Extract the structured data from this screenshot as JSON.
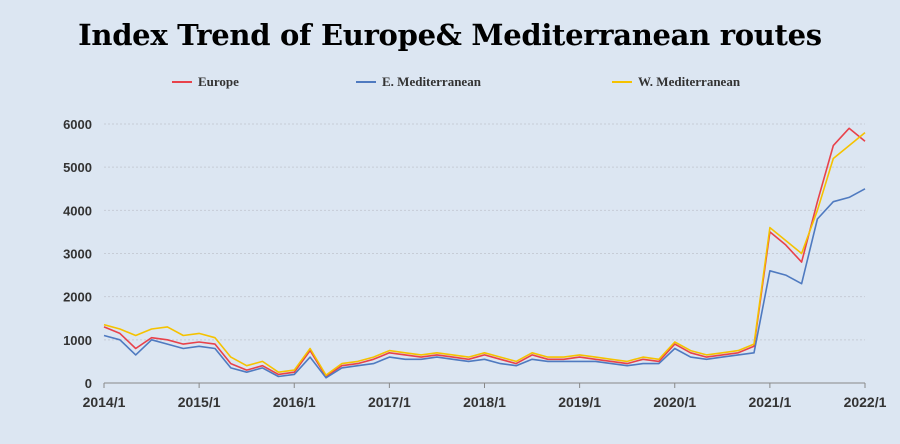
{
  "chart_data": {
    "type": "line",
    "title": "Index Trend of Europe& Mediterranean routes",
    "xlabel": "",
    "ylabel": "",
    "ylim": [
      0,
      6000
    ],
    "y_ticks": [
      "0",
      "1000",
      "2000",
      "3000",
      "4000",
      "5000",
      "6000"
    ],
    "x_ticks": [
      "2014/1",
      "2015/1",
      "2016/1",
      "2017/1",
      "2018/1",
      "2019/1",
      "2020/1",
      "2021/1",
      "2022/1"
    ],
    "grid": "horizontal",
    "legend_position": "top",
    "x": [
      "2014/1",
      "2014/3",
      "2014/5",
      "2014/7",
      "2014/9",
      "2014/11",
      "2015/1",
      "2015/3",
      "2015/5",
      "2015/7",
      "2015/9",
      "2015/11",
      "2016/1",
      "2016/3",
      "2016/5",
      "2016/7",
      "2016/9",
      "2016/11",
      "2017/1",
      "2017/3",
      "2017/5",
      "2017/7",
      "2017/9",
      "2017/11",
      "2018/1",
      "2018/3",
      "2018/5",
      "2018/7",
      "2018/9",
      "2018/11",
      "2019/1",
      "2019/3",
      "2019/5",
      "2019/7",
      "2019/9",
      "2019/11",
      "2020/1",
      "2020/3",
      "2020/5",
      "2020/7",
      "2020/9",
      "2020/11",
      "2021/1",
      "2021/3",
      "2021/5",
      "2021/7",
      "2021/9",
      "2021/11",
      "2022/1"
    ],
    "series": [
      {
        "name": "Europe",
        "color": "#e8424b",
        "values": [
          1300,
          1150,
          800,
          1050,
          1000,
          900,
          950,
          900,
          450,
          300,
          400,
          200,
          250,
          750,
          150,
          400,
          450,
          550,
          700,
          650,
          600,
          650,
          600,
          550,
          650,
          550,
          450,
          650,
          550,
          550,
          600,
          550,
          500,
          450,
          550,
          500,
          900,
          700,
          600,
          650,
          700,
          850,
          3500,
          3200,
          2800,
          4200,
          5500,
          5900,
          5600
        ]
      },
      {
        "name": "E. Mediterranean",
        "color": "#4f7ac0",
        "values": [
          1100,
          1000,
          650,
          1000,
          900,
          800,
          850,
          800,
          350,
          250,
          350,
          150,
          200,
          600,
          120,
          350,
          400,
          450,
          600,
          550,
          550,
          600,
          550,
          500,
          550,
          450,
          400,
          550,
          500,
          500,
          500,
          500,
          450,
          400,
          450,
          450,
          800,
          600,
          550,
          600,
          650,
          700,
          2600,
          2500,
          2300,
          3800,
          4200,
          4300,
          4500
        ]
      },
      {
        "name": "W. Mediterranean",
        "color": "#f5c200",
        "values": [
          1350,
          1250,
          1100,
          1250,
          1300,
          1100,
          1150,
          1050,
          600,
          400,
          500,
          250,
          300,
          800,
          180,
          450,
          500,
          600,
          750,
          700,
          650,
          700,
          650,
          600,
          700,
          600,
          500,
          700,
          600,
          600,
          650,
          600,
          550,
          500,
          600,
          550,
          950,
          750,
          650,
          700,
          750,
          900,
          3600,
          3300,
          3000,
          4000,
          5200,
          5500,
          5800
        ]
      }
    ]
  }
}
